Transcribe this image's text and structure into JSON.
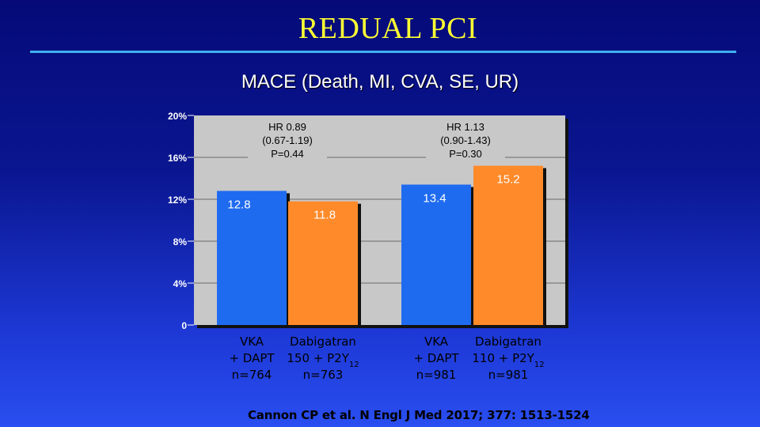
{
  "title": "REDUAL PCI",
  "chart_data": {
    "type": "bar",
    "title": "MACE (Death, MI, CVA, SE, UR)",
    "ylim": [
      0,
      20
    ],
    "y_ticks": [
      "0",
      "4%",
      "8%",
      "12%",
      "16%",
      "20%"
    ],
    "y_tick_values": [
      0,
      4,
      8,
      12,
      16,
      20
    ],
    "groups": [
      {
        "hr": [
          "HR 0.89",
          "(0.67-1.19)",
          "P=0.44"
        ],
        "bars": [
          {
            "name": "VKA + DAPT",
            "value": 12.8,
            "value_label": "12.8",
            "color": "#1f6bf0",
            "label_lines": [
              "VKA",
              "+ DAPT",
              "n=764"
            ]
          },
          {
            "name": "Dabigatran 150 + P2Y12",
            "value": 11.8,
            "value_label": "11.8",
            "color": "#ff8a2a",
            "label_lines": [
              "Dabigatran",
              "150 + P2Y",
              "n=763"
            ],
            "subscript": "12"
          }
        ]
      },
      {
        "hr": [
          "HR 1.13",
          "(0.90-1.43)",
          "P=0.30"
        ],
        "bars": [
          {
            "name": "VKA + DAPT",
            "value": 13.4,
            "value_label": "13.4",
            "color": "#1f6bf0",
            "label_lines": [
              "VKA",
              "+ DAPT",
              "n=981"
            ]
          },
          {
            "name": "Dabigatran 110 + P2Y12",
            "value": 15.2,
            "value_label": "15.2",
            "color": "#ff8a2a",
            "label_lines": [
              "Dabigatran",
              "110 + P2Y",
              "n=981"
            ],
            "subscript": "12"
          }
        ]
      }
    ]
  },
  "citation": "Cannon CP et al. N Engl J Med 2017; 377: 1513-1524"
}
